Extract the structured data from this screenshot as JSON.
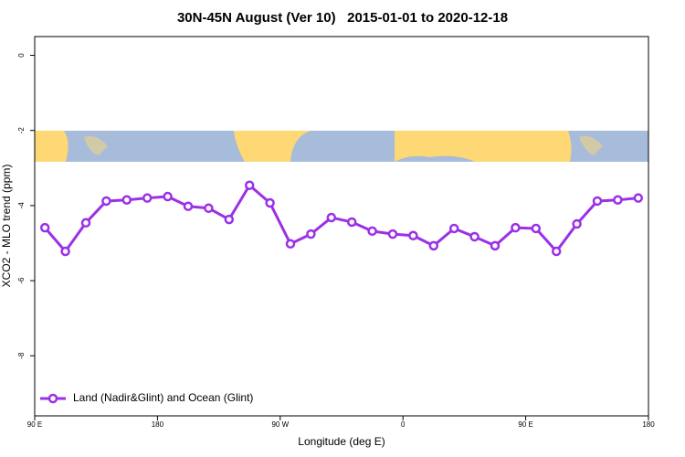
{
  "chart_data": {
    "type": "line",
    "title": "30N-45N August (Ver 10)   2015-01-01 to 2020-12-18",
    "x_label": "Longitude (deg E)",
    "y_label": "XCO2 - MLO trend (ppm)",
    "x": [
      97.5,
      112.5,
      127.5,
      142.5,
      157.5,
      172.5,
      187.5,
      202.5,
      217.5,
      232.5,
      247.5,
      262.5,
      277.5,
      292.5,
      307.5,
      322.5,
      337.5,
      352.5,
      367.5,
      382.5,
      397.5,
      412.5,
      427.5,
      442.5,
      457.5,
      472.5,
      487.5,
      502.5,
      517.5,
      532.5
    ],
    "series": [
      {
        "name": "Land (Nadir&Glint) and Ocean (Glint)",
        "color": "#9b30e6",
        "values": [
          -4.59,
          -5.22,
          -4.46,
          -3.88,
          -3.85,
          -3.8,
          -3.76,
          -4.02,
          -4.07,
          -4.37,
          -3.46,
          -3.93,
          -5.02,
          -4.76,
          -4.32,
          -4.44,
          -4.68,
          -4.76,
          -4.8,
          -5.07,
          -4.61,
          -4.83,
          -5.07,
          -4.59,
          -4.61,
          -5.22,
          -4.49,
          -3.88,
          -3.85,
          -3.8
        ]
      }
    ],
    "xlim": [
      90,
      540
    ],
    "ylim": [
      -9.6,
      0.5
    ],
    "xticks": [
      {
        "value": 90,
        "label": "90 E"
      },
      {
        "value": 180,
        "label": "180"
      },
      {
        "value": 270,
        "label": "90 W"
      },
      {
        "value": 360,
        "label": "0"
      },
      {
        "value": 450,
        "label": "90 E"
      },
      {
        "value": 540,
        "label": "180"
      }
    ],
    "yticks": [
      0,
      -2,
      -4,
      -6,
      -8
    ],
    "legend": "lower left"
  }
}
